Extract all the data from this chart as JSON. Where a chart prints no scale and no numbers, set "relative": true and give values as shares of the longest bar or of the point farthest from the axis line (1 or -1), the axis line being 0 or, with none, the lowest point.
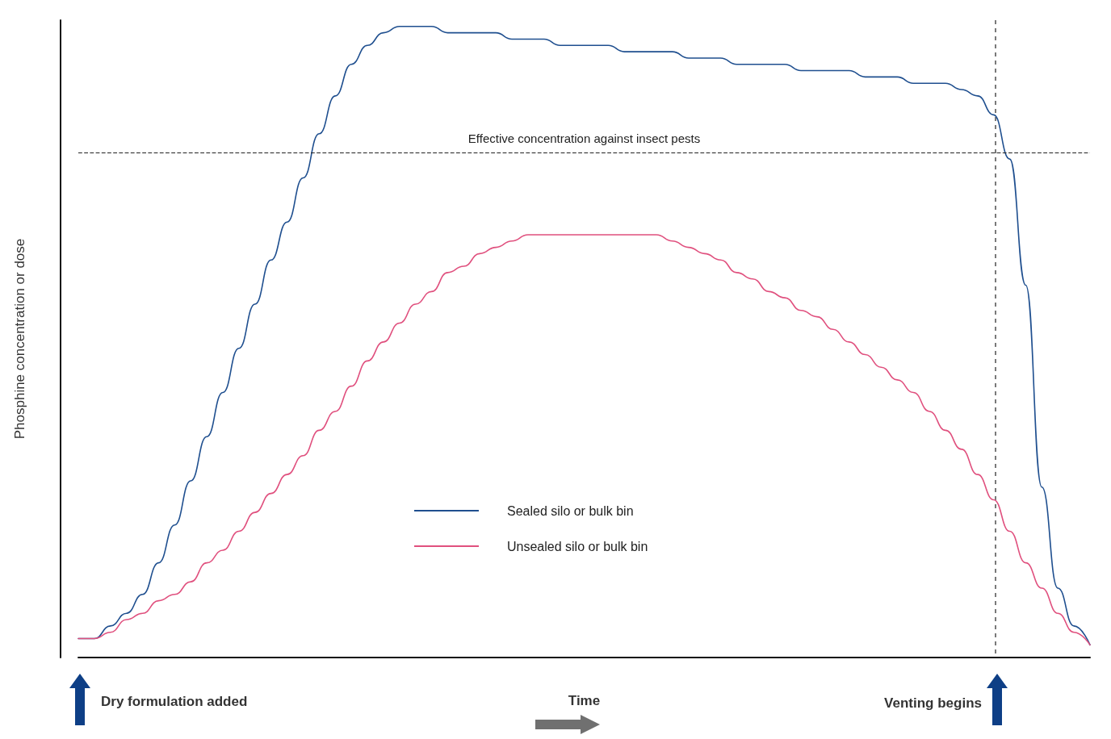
{
  "chart_data": {
    "type": "line",
    "relative": true,
    "xlabel": "Time",
    "ylabel": "Phosphine concentration or dose",
    "categories": [
      null,
      null,
      null,
      null,
      null,
      null,
      null,
      null,
      null,
      null,
      null,
      null,
      null,
      null,
      null,
      null,
      null,
      null,
      null,
      null,
      null,
      null,
      null,
      null,
      null,
      null,
      null,
      null,
      null,
      null,
      null,
      null,
      null,
      null,
      null,
      null,
      null,
      null,
      null,
      null,
      null,
      null,
      null,
      null,
      null,
      null,
      null,
      null,
      null,
      null,
      null,
      null,
      null,
      null,
      null,
      null,
      null,
      null,
      null,
      null,
      null,
      null,
      null,
      null
    ],
    "series": [
      {
        "name": "Sealed silo or bulk bin",
        "color": "#1f4f8f",
        "values": [
          0.03,
          0.03,
          0.05,
          0.07,
          0.1,
          0.15,
          0.21,
          0.28,
          0.35,
          0.42,
          0.49,
          0.56,
          0.63,
          0.69,
          0.76,
          0.83,
          0.89,
          0.94,
          0.97,
          0.99,
          1.0,
          1.0,
          1.0,
          0.99,
          0.99,
          0.99,
          0.99,
          0.98,
          0.98,
          0.98,
          0.97,
          0.97,
          0.97,
          0.97,
          0.96,
          0.96,
          0.96,
          0.96,
          0.95,
          0.95,
          0.95,
          0.94,
          0.94,
          0.94,
          0.94,
          0.93,
          0.93,
          0.93,
          0.93,
          0.92,
          0.92,
          0.92,
          0.91,
          0.91,
          0.91,
          0.9,
          0.89,
          0.86,
          0.79,
          0.59,
          0.27,
          0.11,
          0.05,
          0.02
        ]
      },
      {
        "name": "Unsealed silo or bulk bin",
        "color": "#e0507e",
        "values": [
          0.03,
          0.03,
          0.04,
          0.06,
          0.07,
          0.09,
          0.1,
          0.12,
          0.15,
          0.17,
          0.2,
          0.23,
          0.26,
          0.29,
          0.32,
          0.36,
          0.39,
          0.43,
          0.47,
          0.5,
          0.53,
          0.56,
          0.58,
          0.61,
          0.62,
          0.64,
          0.65,
          0.66,
          0.67,
          0.67,
          0.67,
          0.67,
          0.67,
          0.67,
          0.67,
          0.67,
          0.67,
          0.66,
          0.65,
          0.64,
          0.63,
          0.61,
          0.6,
          0.58,
          0.57,
          0.55,
          0.54,
          0.52,
          0.5,
          0.48,
          0.46,
          0.44,
          0.42,
          0.39,
          0.36,
          0.33,
          0.29,
          0.25,
          0.2,
          0.15,
          0.11,
          0.07,
          0.04,
          0.02
        ]
      }
    ],
    "ref_lines": [
      {
        "axis": "y",
        "value": 0.8,
        "label": "Effective concentration against insect pests",
        "line_style": "dashed",
        "color": "#222222"
      }
    ],
    "annotations": [
      "Dry formulation added",
      "Venting begins"
    ],
    "legend": "bottom",
    "grid": false,
    "marker": "none",
    "line_style": "solid"
  }
}
